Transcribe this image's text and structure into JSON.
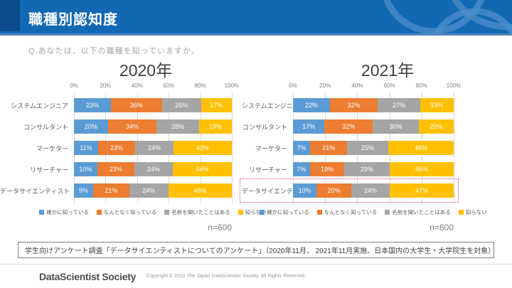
{
  "header": {
    "title": "職種別認知度",
    "accent_color": "#1268B2",
    "corner_color": "#0B4D8C"
  },
  "question": "Q.あなたは、以下の職種を知っていますか。",
  "chart_data": [
    {
      "type": "bar",
      "orientation": "horizontal",
      "stacked": true,
      "title": "2020年",
      "categories": [
        "システムエンジニア",
        "コンサルタント",
        "マーケター",
        "リサーチャー",
        "データサイエンティスト"
      ],
      "series": [
        {
          "name": "確かに知っている",
          "color": "#5B9BD5",
          "values": [
            23,
            20,
            11,
            10,
            9
          ]
        },
        {
          "name": "なんとなく知っている",
          "color": "#ED7D31",
          "values": [
            36,
            34,
            23,
            23,
            21
          ]
        },
        {
          "name": "名前を聞いたことはある",
          "color": "#A5A5A5",
          "values": [
            25,
            28,
            24,
            24,
            24
          ]
        },
        {
          "name": "知らない",
          "color": "#FFC000",
          "values": [
            17,
            19,
            43,
            44,
            46
          ]
        }
      ],
      "x_ticks": [
        "0%",
        "20%",
        "40%",
        "60%",
        "80%",
        "100%"
      ],
      "xlim": [
        0,
        100
      ],
      "unit": "%",
      "grid": true,
      "legend_position": "bottom",
      "sample_label": "n=600",
      "highlight_category": null,
      "highlight_color": null
    },
    {
      "type": "bar",
      "orientation": "horizontal",
      "stacked": true,
      "title": "2021年",
      "categories": [
        "システムエンジニア",
        "コンサルタント",
        "マーケター",
        "リサーチャー",
        "データサイエンティスト"
      ],
      "series": [
        {
          "name": "確かに知っている",
          "color": "#5B9BD5",
          "values": [
            22,
            17,
            7,
            7,
            10
          ]
        },
        {
          "name": "なんとなく知っている",
          "color": "#ED7D31",
          "values": [
            32,
            32,
            21,
            19,
            20
          ]
        },
        {
          "name": "名前を聞いたことはある",
          "color": "#A5A5A5",
          "values": [
            27,
            30,
            25,
            29,
            24
          ]
        },
        {
          "name": "知らない",
          "color": "#FFC000",
          "values": [
            19,
            20,
            46,
            46,
            47
          ]
        }
      ],
      "x_ticks": [
        "0%",
        "20%",
        "40%",
        "60%",
        "80%",
        "100%"
      ],
      "xlim": [
        0,
        100
      ],
      "unit": "%",
      "grid": true,
      "legend_position": "bottom",
      "sample_label": "n=600",
      "highlight_category": "データサイエンティスト",
      "highlight_color": "#E8447A"
    }
  ],
  "note": "学生向けアンケート調査「データサイエンティストについてのアンケート」（2020年11月、 2021年11月実施、日本国内の大学生・大学院生を対象）",
  "footer": {
    "logo": "DataScientist Society",
    "copyright": "Copyright © 2022 The Japan DataScientist Society. All Rights Reserved."
  }
}
